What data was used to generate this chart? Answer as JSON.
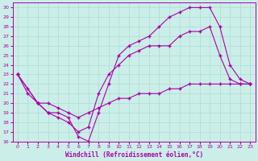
{
  "bg_color": "#cceee8",
  "line_color": "#aa00aa",
  "grid_color": "#aaddcc",
  "xlabel": "Windchill (Refroidissement éolien,°C)",
  "xlim": [
    -0.5,
    23.5
  ],
  "ylim": [
    16,
    30.5
  ],
  "yticks": [
    16,
    17,
    18,
    19,
    20,
    21,
    22,
    23,
    24,
    25,
    26,
    27,
    28,
    29,
    30
  ],
  "xticks": [
    0,
    1,
    2,
    3,
    4,
    5,
    6,
    7,
    8,
    9,
    10,
    11,
    12,
    13,
    14,
    15,
    16,
    17,
    18,
    19,
    20,
    21,
    22,
    23
  ],
  "series": [
    {
      "x": [
        0,
        1,
        2,
        3,
        4,
        5,
        6,
        7,
        8,
        9,
        10,
        11,
        12,
        13,
        14,
        15,
        16,
        17,
        18,
        19,
        20,
        21,
        22,
        23
      ],
      "y": [
        23,
        21.5,
        20,
        20,
        19.5,
        19,
        18.5,
        19,
        19.5,
        20,
        20.5,
        20.5,
        21,
        21,
        21,
        21.5,
        21.5,
        22,
        22,
        22,
        22,
        22,
        22,
        22
      ]
    },
    {
      "x": [
        0,
        1,
        2,
        3,
        4,
        5,
        6,
        7,
        8,
        9,
        10,
        11,
        12,
        13,
        14,
        15,
        16,
        17,
        18,
        19,
        20,
        21,
        22,
        23
      ],
      "y": [
        23,
        21,
        20,
        19,
        18.5,
        18,
        17,
        17.5,
        21,
        23,
        24,
        25,
        25.5,
        26,
        26,
        26,
        27,
        27.5,
        27.5,
        28,
        25,
        22.5,
        22,
        22
      ]
    },
    {
      "x": [
        0,
        2,
        3,
        4,
        5,
        6,
        7,
        8,
        9,
        10,
        11,
        12,
        13,
        14,
        15,
        16,
        17,
        18,
        19,
        20,
        21,
        22,
        23
      ],
      "y": [
        23,
        20,
        19,
        19,
        18.5,
        16.5,
        16,
        19,
        22,
        25,
        26,
        26.5,
        27,
        28,
        29,
        29.5,
        30,
        30,
        30,
        28,
        24,
        22.5,
        22
      ]
    }
  ]
}
